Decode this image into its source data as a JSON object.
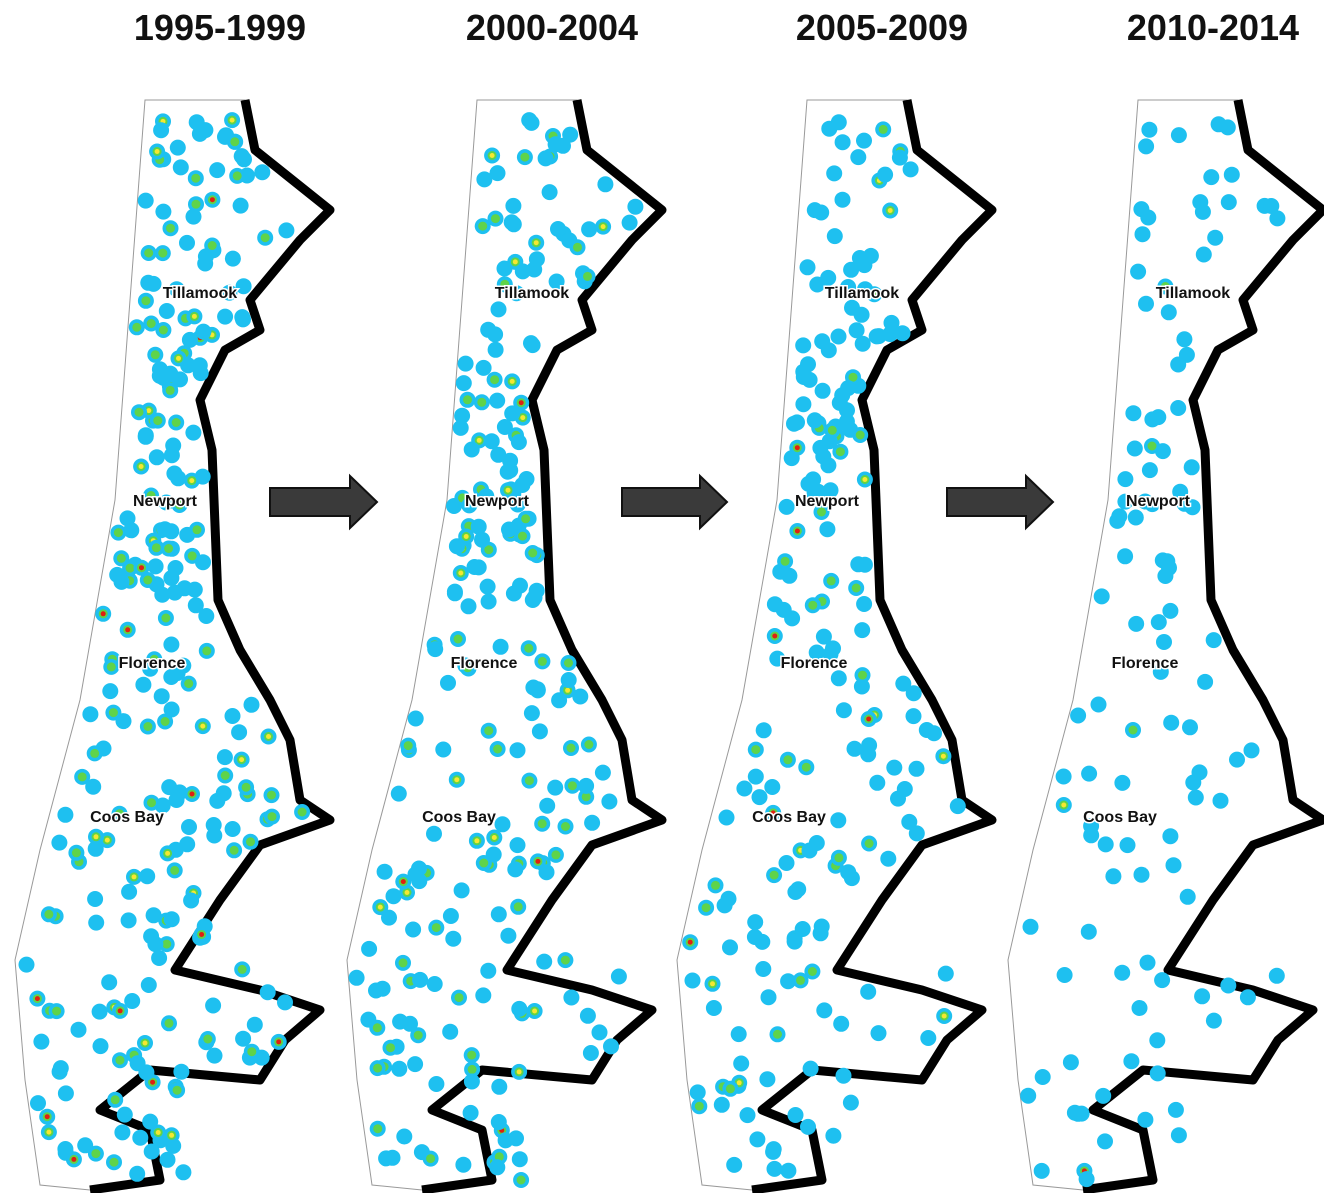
{
  "panels": [
    {
      "title": "1995-1999",
      "cities": [
        "Tillamook",
        "Newport",
        "Florence",
        "Coos Bay"
      ]
    },
    {
      "title": "2000-2004",
      "cities": [
        "Tillamook",
        "Newport",
        "Florence",
        "Coos Bay"
      ]
    },
    {
      "title": "2005-2009",
      "cities": [
        "Tillamook",
        "Newport",
        "Florence",
        "Coos Bay"
      ]
    },
    {
      "title": "2010-2014",
      "cities": [
        "Tillamook",
        "Newport",
        "Florence",
        "Coos Bay"
      ]
    }
  ]
}
